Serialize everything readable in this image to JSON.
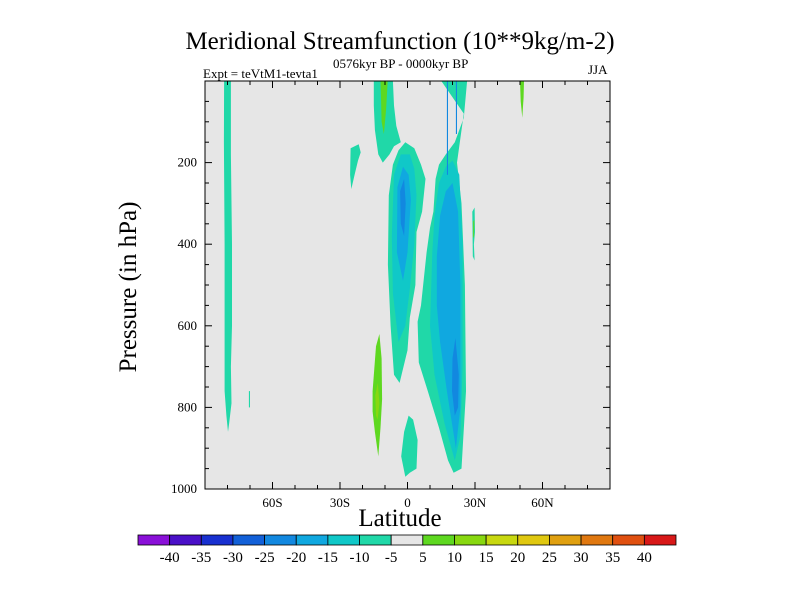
{
  "chart_data": {
    "type": "contour",
    "title": "Meridional Streamfunction (10**9kg/m-2)",
    "experiment_label": "Expt = teVtM1-tevta1",
    "period_label": "0576kyr BP - 0000kyr BP",
    "season": "JJA",
    "xlabel": "Latitude",
    "ylabel": "Pressure (in hPa)",
    "xlim": [
      -90,
      90
    ],
    "ylim": [
      1000,
      0
    ],
    "x_ticks": [
      {
        "value": -60,
        "label": "60S"
      },
      {
        "value": -30,
        "label": "30S"
      },
      {
        "value": 0,
        "label": "0"
      },
      {
        "value": 30,
        "label": "30N"
      },
      {
        "value": 60,
        "label": "60N"
      }
    ],
    "y_ticks": [
      {
        "value": 200,
        "label": "200"
      },
      {
        "value": 400,
        "label": "400"
      },
      {
        "value": 600,
        "label": "600"
      },
      {
        "value": 800,
        "label": "800"
      },
      {
        "value": 1000,
        "label": "1000"
      }
    ],
    "background_color": "#e6e6e6",
    "colorbar": {
      "labels": [
        "-40",
        "-35",
        "-30",
        "-25",
        "-20",
        "-15",
        "-10",
        "-5",
        "5",
        "10",
        "15",
        "20",
        "25",
        "30",
        "35",
        "40"
      ],
      "colors": [
        "#8a10d8",
        "#4a10c8",
        "#1830d0",
        "#1260d8",
        "#1288e0",
        "#10a8e0",
        "#10c8c8",
        "#20d8a8",
        "#e6e6e6",
        "#5ed820",
        "#88d810",
        "#c8d810",
        "#e0c810",
        "#e0a010",
        "#e07810",
        "#e05010",
        "#d81818"
      ]
    },
    "regions": [
      {
        "name": "sh-polar-positive-column",
        "color": "#20d8a8",
        "points": [
          [
            -81.5,
            0
          ],
          [
            -78.5,
            0
          ],
          [
            -78.5,
            180
          ],
          [
            -78,
            400
          ],
          [
            -78,
            600
          ],
          [
            -78.5,
            700
          ],
          [
            -78.2,
            790
          ],
          [
            -79.3,
            840
          ],
          [
            -79.8,
            860
          ],
          [
            -80.5,
            820
          ],
          [
            -81.3,
            760
          ],
          [
            -81.3,
            400
          ],
          [
            -81.6,
            150
          ]
        ]
      },
      {
        "name": "sh-polar-speck",
        "color": "#20d8a8",
        "points": [
          [
            -70.5,
            760
          ],
          [
            -70,
            760
          ],
          [
            -70,
            800
          ],
          [
            -70.5,
            800
          ]
        ]
      },
      {
        "name": "upper-positive-tongue",
        "color": "#20d8a8",
        "points": [
          [
            -15,
            0
          ],
          [
            -6.5,
            0
          ],
          [
            -6,
            60
          ],
          [
            -5,
            110
          ],
          [
            -3,
            150
          ],
          [
            -6,
            160
          ],
          [
            -8,
            180
          ],
          [
            -11,
            200
          ],
          [
            -13,
            180
          ],
          [
            -14.5,
            120
          ],
          [
            -15,
            60
          ]
        ]
      },
      {
        "name": "upper-positive-core",
        "color": "#5ed820",
        "points": [
          [
            -12,
            0
          ],
          [
            -8.8,
            0
          ],
          [
            -9.5,
            70
          ],
          [
            -10.5,
            130
          ],
          [
            -11.5,
            100
          ],
          [
            -11.8,
            40
          ]
        ]
      },
      {
        "name": "sh-midlevel-positive-blob",
        "color": "#20d8a8",
        "points": [
          [
            -25.3,
            165
          ],
          [
            -21.7,
            155
          ],
          [
            -20.8,
            175
          ],
          [
            -22,
            195
          ],
          [
            -23.5,
            230
          ],
          [
            -25,
            265
          ],
          [
            -25.5,
            230
          ]
        ]
      },
      {
        "name": "tropical-main-cell-outer",
        "color": "#20d8a8",
        "points": [
          [
            -6.5,
            205
          ],
          [
            -4,
            170
          ],
          [
            -1,
            150
          ],
          [
            3,
            165
          ],
          [
            6,
            205
          ],
          [
            8,
            240
          ],
          [
            6.5,
            320
          ],
          [
            4,
            370
          ],
          [
            3.5,
            500
          ],
          [
            1,
            580
          ],
          [
            0,
            660
          ],
          [
            -3.5,
            740
          ],
          [
            -6,
            720
          ],
          [
            -7.5,
            600
          ],
          [
            -8.7,
            450
          ],
          [
            -8.3,
            280
          ]
        ]
      },
      {
        "name": "tropical-main-cell-mid",
        "color": "#10c8c8",
        "points": [
          [
            -6,
            230
          ],
          [
            -3,
            180
          ],
          [
            1,
            180
          ],
          [
            3,
            215
          ],
          [
            4,
            280
          ],
          [
            3,
            400
          ],
          [
            1,
            510
          ],
          [
            -1,
            600
          ],
          [
            -4,
            640
          ],
          [
            -6.5,
            520
          ],
          [
            -7,
            380
          ]
        ]
      },
      {
        "name": "tropical-main-cell-inner",
        "color": "#10a8e0",
        "points": [
          [
            -4.5,
            260
          ],
          [
            -2,
            210
          ],
          [
            0.5,
            230
          ],
          [
            1.5,
            290
          ],
          [
            0,
            420
          ],
          [
            -2,
            490
          ],
          [
            -4.7,
            420
          ]
        ]
      },
      {
        "name": "tropical-main-cell-core",
        "color": "#1288e0",
        "points": [
          [
            -3.3,
            270
          ],
          [
            -1.5,
            240
          ],
          [
            -0.8,
            300
          ],
          [
            -1.5,
            380
          ],
          [
            -3,
            350
          ]
        ]
      },
      {
        "name": "nh-tropical-outer",
        "color": "#20d8a8",
        "points": [
          [
            15,
            0
          ],
          [
            26.5,
            0
          ],
          [
            25,
            90
          ],
          [
            21,
            150
          ],
          [
            17,
            180
          ],
          [
            14,
            205
          ],
          [
            12.5,
            240
          ],
          [
            11.5,
            320
          ],
          [
            10,
            360
          ],
          [
            8.5,
            420
          ],
          [
            6,
            550
          ],
          [
            4.5,
            590
          ],
          [
            5,
            690
          ],
          [
            9,
            760
          ],
          [
            14,
            850
          ],
          [
            18,
            930
          ],
          [
            20.5,
            960
          ],
          [
            24,
            950
          ],
          [
            26,
            760
          ],
          [
            25.5,
            500
          ],
          [
            24,
            300
          ],
          [
            22,
            200
          ],
          [
            25,
            80
          ]
        ]
      },
      {
        "name": "nh-tropical-mid",
        "color": "#10c8c8",
        "points": [
          [
            11,
            420
          ],
          [
            12,
            330
          ],
          [
            14,
            250
          ],
          [
            17,
            210
          ],
          [
            20,
            195
          ],
          [
            23,
            230
          ],
          [
            24.5,
            400
          ],
          [
            24.5,
            700
          ],
          [
            23.5,
            870
          ],
          [
            21,
            930
          ],
          [
            16.5,
            840
          ],
          [
            12,
            720
          ],
          [
            10,
            600
          ]
        ]
      },
      {
        "name": "nh-tropical-inner",
        "color": "#10a8e0",
        "points": [
          [
            13,
            430
          ],
          [
            14.5,
            330
          ],
          [
            17,
            270
          ],
          [
            20,
            250
          ],
          [
            22.5,
            320
          ],
          [
            23.5,
            500
          ],
          [
            23.5,
            800
          ],
          [
            21.5,
            900
          ],
          [
            17.5,
            760
          ],
          [
            14.5,
            640
          ],
          [
            13,
            550
          ]
        ]
      },
      {
        "name": "nh-tropical-core",
        "color": "#1288e0",
        "points": [
          [
            20,
            680
          ],
          [
            21.3,
            630
          ],
          [
            22.8,
            720
          ],
          [
            22.5,
            800
          ],
          [
            21,
            820
          ],
          [
            19.8,
            760
          ]
        ]
      },
      {
        "name": "nh-jet-line-a",
        "color": "#1288e0",
        "points": [
          [
            17.5,
            0
          ],
          [
            18,
            0
          ],
          [
            18,
            230
          ],
          [
            17.5,
            230
          ]
        ]
      },
      {
        "name": "nh-jet-line-b",
        "color": "#1288e0",
        "points": [
          [
            21.5,
            0
          ],
          [
            22,
            0
          ],
          [
            22,
            130
          ],
          [
            21.5,
            130
          ]
        ]
      },
      {
        "name": "sh-lower-positive-blob-outer",
        "color": "#5ed820",
        "points": [
          [
            -15.5,
            760
          ],
          [
            -14,
            650
          ],
          [
            -12.5,
            620
          ],
          [
            -11.5,
            680
          ],
          [
            -11.3,
            780
          ],
          [
            -12,
            850
          ],
          [
            -13,
            920
          ],
          [
            -14.5,
            860
          ],
          [
            -15.5,
            810
          ]
        ]
      },
      {
        "name": "sh-lower-positive-blob-core",
        "color": "#88d810",
        "points": [
          [
            -14.3,
            770
          ],
          [
            -13.2,
            740
          ],
          [
            -12.5,
            790
          ],
          [
            -13.3,
            830
          ],
          [
            -14,
            820
          ]
        ]
      },
      {
        "name": "surface-positive-blob",
        "color": "#20d8a8",
        "points": [
          [
            -2.8,
            920
          ],
          [
            -1.5,
            860
          ],
          [
            0.5,
            820
          ],
          [
            2.5,
            830
          ],
          [
            4.5,
            880
          ],
          [
            4,
            950
          ],
          [
            1,
            960
          ],
          [
            -1,
            970
          ]
        ]
      },
      {
        "name": "mid-nh-small-blob",
        "color": "#20d8a8",
        "points": [
          [
            28.8,
            320
          ],
          [
            29.8,
            310
          ],
          [
            30,
            370
          ],
          [
            29.5,
            400
          ],
          [
            29.8,
            440
          ],
          [
            29,
            430
          ]
        ]
      },
      {
        "name": "mid-nh-small-blob-core",
        "color": "#5ed820",
        "points": [
          [
            29.2,
            345
          ],
          [
            29.7,
            340
          ],
          [
            29.6,
            380
          ],
          [
            29.2,
            385
          ]
        ]
      },
      {
        "name": "nh-high-positive-blob",
        "color": "#5ed820",
        "points": [
          [
            50,
            0
          ],
          [
            51.8,
            0
          ],
          [
            51.6,
            40
          ],
          [
            51,
            90
          ],
          [
            50.3,
            50
          ]
        ]
      }
    ]
  }
}
